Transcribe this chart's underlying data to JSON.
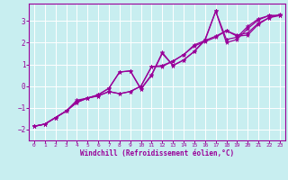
{
  "xlabel": "Windchill (Refroidissement éolien,°C)",
  "bg_color": "#c8eef0",
  "grid_color": "#aad8dc",
  "line_color": "#990099",
  "spine_color": "#606060",
  "xlim": [
    -0.5,
    23.5
  ],
  "ylim": [
    -2.5,
    3.8
  ],
  "xticks": [
    0,
    1,
    2,
    3,
    4,
    5,
    6,
    7,
    8,
    9,
    10,
    11,
    12,
    13,
    14,
    15,
    16,
    17,
    18,
    19,
    20,
    21,
    22,
    23
  ],
  "yticks": [
    -2,
    -1,
    0,
    1,
    2,
    3
  ],
  "line1_y": [
    -1.85,
    -1.75,
    -1.45,
    -1.15,
    -0.75,
    -0.55,
    -0.45,
    -0.25,
    -0.35,
    -0.25,
    -0.0,
    0.9,
    0.9,
    1.15,
    1.45,
    1.85,
    2.05,
    2.25,
    2.55,
    2.3,
    2.35,
    2.85,
    3.15,
    3.25
  ],
  "line2_y": [
    -1.85,
    -1.75,
    -1.45,
    -1.15,
    -0.65,
    -0.55,
    -0.4,
    -0.1,
    0.65,
    0.7,
    -0.15,
    0.5,
    1.5,
    0.95,
    1.2,
    1.6,
    2.1,
    3.45,
    2.0,
    2.15,
    2.65,
    3.05,
    3.25,
    3.25
  ],
  "line3_y": [
    -1.85,
    -1.75,
    -1.45,
    -1.15,
    -0.7,
    -0.55,
    -0.4,
    -0.1,
    0.65,
    0.7,
    -0.12,
    0.53,
    1.55,
    0.95,
    1.2,
    1.6,
    2.15,
    3.45,
    2.15,
    2.25,
    2.75,
    3.1,
    3.25,
    3.25
  ],
  "line4_y": [
    -1.85,
    -1.75,
    -1.45,
    -1.15,
    -0.75,
    -0.55,
    -0.45,
    -0.25,
    -0.35,
    -0.25,
    -0.0,
    0.9,
    0.95,
    1.15,
    1.45,
    1.9,
    2.1,
    2.3,
    2.55,
    2.35,
    2.45,
    2.9,
    3.15,
    3.3
  ]
}
